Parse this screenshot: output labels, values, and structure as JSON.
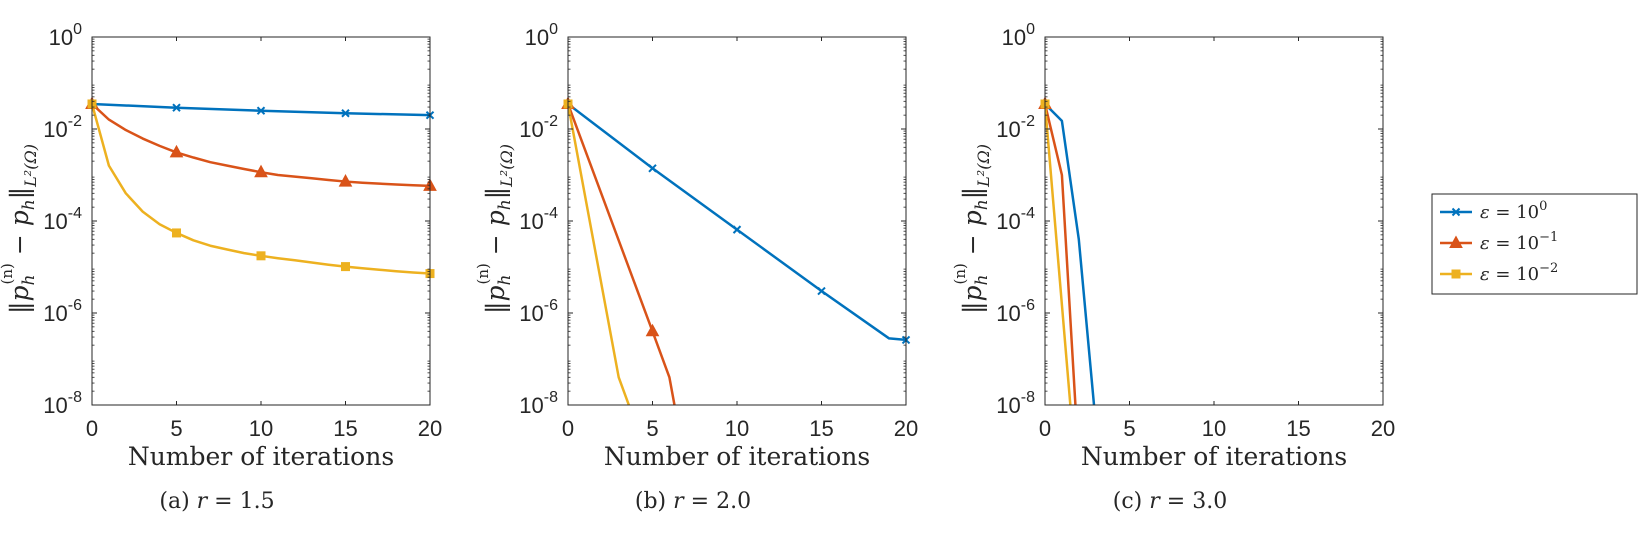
{
  "colors": {
    "eps0": "#0072BD",
    "eps1": "#D95319",
    "eps2": "#EDB120",
    "axis": "#262626"
  },
  "chart_data": [
    {
      "type": "line",
      "caption": "(a) r = 1.5",
      "xlabel": "Number of iterations",
      "ylabel": "||p_h^(n) − p_h||_L²(Ω)",
      "xlim": [
        0,
        20
      ],
      "ylim": [
        1e-08,
        1
      ],
      "yscale": "log",
      "xticks": [
        "0",
        "5",
        "10",
        "15",
        "20"
      ],
      "yticks": [
        "10^0",
        "10^-2",
        "10^-4",
        "10^-6",
        "10^-8"
      ],
      "series": [
        {
          "name": "ε = 10^0",
          "marker": "x",
          "color": "eps0",
          "x": [
            0,
            5,
            10,
            15,
            20
          ],
          "y": [
            0.035,
            0.029,
            0.025,
            0.022,
            0.02
          ],
          "mx": [
            0,
            5,
            10,
            15,
            20
          ]
        },
        {
          "name": "ε = 10^-1",
          "marker": "triangle",
          "color": "eps1",
          "x": [
            0,
            1,
            2,
            3,
            4,
            5,
            6,
            7,
            8,
            9,
            10,
            11,
            12,
            13,
            14,
            15,
            16,
            17,
            18,
            19,
            20
          ],
          "y": [
            0.035,
            0.016,
            0.0095,
            0.0062,
            0.0043,
            0.0031,
            0.0024,
            0.0019,
            0.0016,
            0.00135,
            0.00115,
            0.001,
            0.00092,
            0.00085,
            0.00078,
            0.00072,
            0.00068,
            0.00065,
            0.00062,
            0.0006,
            0.00058
          ],
          "mx": [
            0,
            5,
            10,
            15,
            20
          ]
        },
        {
          "name": "ε = 10^-2",
          "marker": "square",
          "color": "eps2",
          "x": [
            0,
            1,
            2,
            3,
            4,
            5,
            6,
            7,
            8,
            9,
            10,
            11,
            12,
            13,
            14,
            15,
            16,
            17,
            18,
            19,
            20
          ],
          "y": [
            0.035,
            0.0016,
            0.0004,
            0.00016,
            8.5e-05,
            5.5e-05,
            3.8e-05,
            2.9e-05,
            2.4e-05,
            2e-05,
            1.75e-05,
            1.55e-05,
            1.4e-05,
            1.25e-05,
            1.12e-05,
            1.02e-05,
            9.4e-06,
            8.7e-06,
            8.1e-06,
            7.6e-06,
            7.2e-06
          ],
          "mx": [
            0,
            5,
            10,
            15,
            20
          ]
        }
      ]
    },
    {
      "type": "line",
      "caption": "(b) r = 2.0",
      "xlabel": "Number of iterations",
      "ylabel": "||p_h^(n) − p_h||_L²(Ω)",
      "xlim": [
        0,
        20
      ],
      "ylim": [
        1e-08,
        1
      ],
      "yscale": "log",
      "xticks": [
        "0",
        "5",
        "10",
        "15",
        "20"
      ],
      "yticks": [
        "10^0",
        "10^-2",
        "10^-4",
        "10^-6",
        "10^-8"
      ],
      "series": [
        {
          "name": "ε = 10^0",
          "marker": "x",
          "color": "eps0",
          "x": [
            0,
            5,
            10,
            15,
            19,
            20
          ],
          "y": [
            0.035,
            0.0014,
            6.5e-05,
            3e-06,
            2.8e-07,
            2.6e-07
          ],
          "mx": [
            0,
            5,
            10,
            15,
            20
          ]
        },
        {
          "name": "ε = 10^-1",
          "marker": "triangle",
          "color": "eps1",
          "x": [
            0,
            5,
            6,
            6.3
          ],
          "y": [
            0.035,
            4e-07,
            4e-08,
            1e-08
          ],
          "mx": [
            0,
            5
          ]
        },
        {
          "name": "ε = 10^-2",
          "marker": "square",
          "color": "eps2",
          "x": [
            0,
            3,
            3.6
          ],
          "y": [
            0.035,
            4e-08,
            1e-08
          ],
          "mx": [
            0
          ]
        }
      ]
    },
    {
      "type": "line",
      "caption": "(c) r = 3.0",
      "xlabel": "Number of iterations",
      "ylabel": "||p_h^(n) − p_h||_L²(Ω)",
      "xlim": [
        0,
        20
      ],
      "ylim": [
        1e-08,
        1
      ],
      "yscale": "log",
      "xticks": [
        "0",
        "5",
        "10",
        "15",
        "20"
      ],
      "yticks": [
        "10^0",
        "10^-2",
        "10^-4",
        "10^-6",
        "10^-8"
      ],
      "series": [
        {
          "name": "ε = 10^0",
          "marker": "x",
          "color": "eps0",
          "x": [
            0,
            1,
            2,
            2.9
          ],
          "y": [
            0.035,
            0.015,
            4e-05,
            1e-08
          ],
          "mx": [
            0
          ]
        },
        {
          "name": "ε = 10^-1",
          "marker": "triangle",
          "color": "eps1",
          "x": [
            0,
            1,
            1.8
          ],
          "y": [
            0.035,
            0.001,
            1e-08
          ],
          "mx": [
            0
          ]
        },
        {
          "name": "ε = 10^-2",
          "marker": "square",
          "color": "eps2",
          "x": [
            0,
            1.5
          ],
          "y": [
            0.035,
            1e-08
          ],
          "mx": [
            0
          ]
        }
      ]
    }
  ],
  "legend": {
    "placement": "right",
    "items": [
      {
        "base": "ε = 10",
        "exp": "0",
        "marker": "x",
        "color": "eps0"
      },
      {
        "base": "ε = 10",
        "exp": "−1",
        "marker": "triangle",
        "color": "eps1"
      },
      {
        "base": "ε = 10",
        "exp": "−2",
        "marker": "square",
        "color": "eps2"
      }
    ]
  }
}
